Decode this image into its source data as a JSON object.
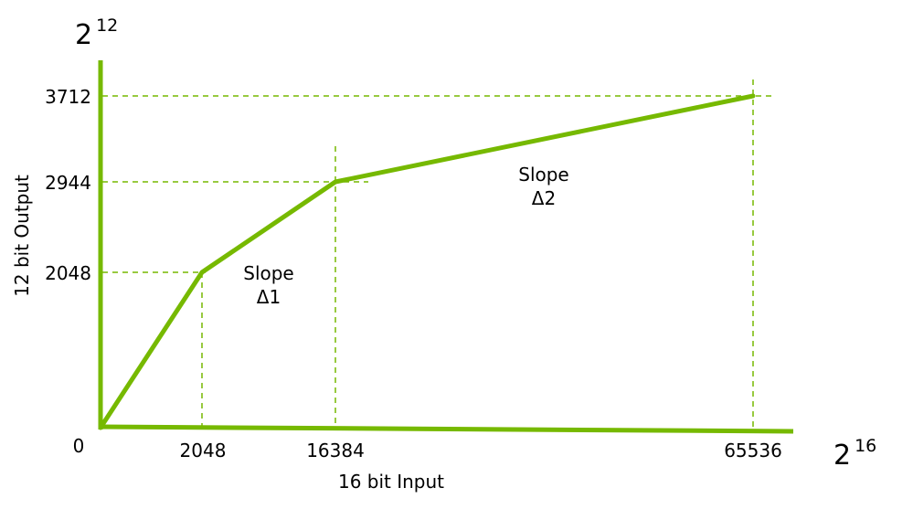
{
  "chart_data": {
    "type": "line",
    "xlabel": "16 bit Input",
    "ylabel": "12 bit Output",
    "x_max_label": {
      "base": "2",
      "exp": "16"
    },
    "y_max_label": {
      "base": "2",
      "exp": "12"
    },
    "origin_label": "0",
    "x_ticks": [
      "2048",
      "16384",
      "65536"
    ],
    "y_ticks": [
      "3712",
      "2944",
      "2048"
    ],
    "series": [
      {
        "points": [
          {
            "x": 0,
            "y": 0
          },
          {
            "x": 2048,
            "y": 2048
          },
          {
            "x": 16384,
            "y": 2944
          },
          {
            "x": 65536,
            "y": 3712
          }
        ]
      }
    ],
    "annotations": [
      {
        "line1": "Slope",
        "line2": "Δ1"
      },
      {
        "line1": "Slope",
        "line2": "Δ2"
      }
    ],
    "guide_lines": true,
    "color": "#76b900"
  }
}
